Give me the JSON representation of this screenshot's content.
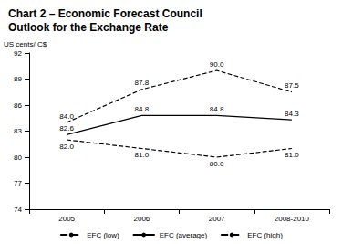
{
  "chart_data": {
    "type": "line",
    "title": "Chart 2 – Economic Forecast Council Outlook for the Exchange Rate",
    "y_label": "US cents/ C$",
    "categories": [
      "2005",
      "2006",
      "2007",
      "2008-2010"
    ],
    "series": [
      {
        "name": "EFC (low)",
        "color": "#000000",
        "line_style": "dashed",
        "values": [
          82.0,
          81.0,
          80.0,
          81.0
        ],
        "value_labels": [
          "82.0",
          "81.0",
          "80.0",
          "81.0"
        ]
      },
      {
        "name": "EFC (average)",
        "color": "#000000",
        "line_style": "solid",
        "values": [
          82.6,
          84.8,
          84.8,
          84.3
        ],
        "value_labels": [
          "82.6",
          "84.8",
          "84.8",
          "84.3"
        ]
      },
      {
        "name": "EFC (high)",
        "color": "#000000",
        "line_style": "dashed",
        "values": [
          84.0,
          87.8,
          90.0,
          87.5
        ],
        "value_labels": [
          "84.0",
          "87.8",
          "90.0",
          "87.5"
        ]
      }
    ],
    "ylim": [
      74,
      92
    ],
    "yticks": [
      74,
      77,
      80,
      83,
      86,
      89,
      92
    ],
    "grid": false,
    "legend": "bottom",
    "data_labels": true
  }
}
